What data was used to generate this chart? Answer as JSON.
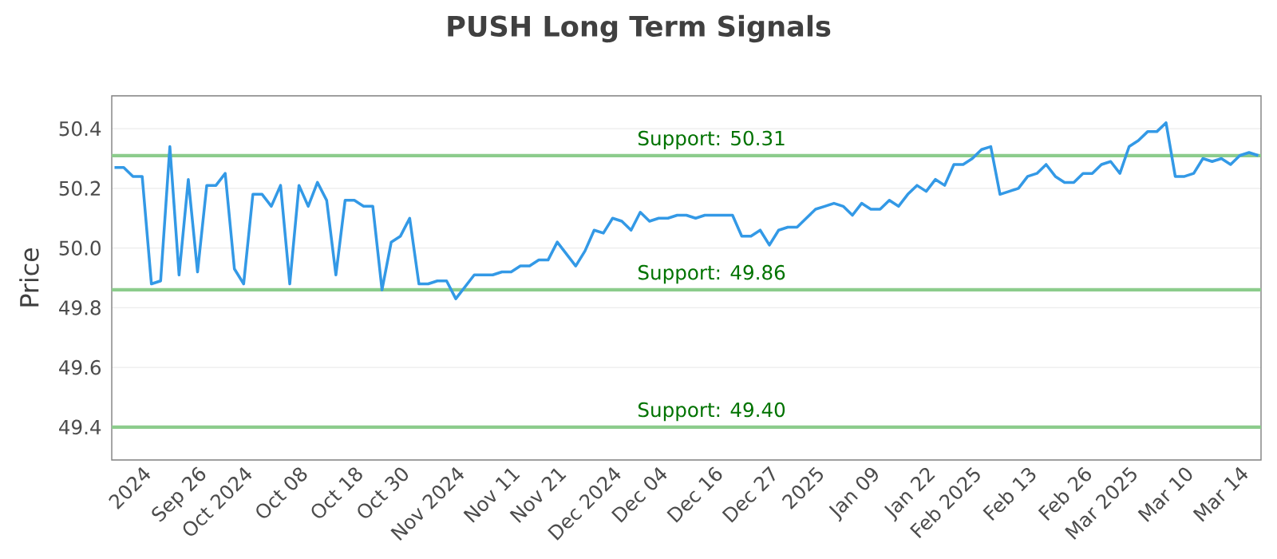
{
  "chart_data": {
    "type": "line",
    "title": "PUSH Long Term Signals",
    "ylabel": "Price",
    "categories": [
      null,
      null,
      null,
      "2024",
      null,
      null,
      null,
      null,
      null,
      "Sep 26",
      null,
      null,
      null,
      null,
      "Oct 2024",
      null,
      null,
      null,
      null,
      null,
      "Oct 08",
      null,
      null,
      null,
      null,
      null,
      "Oct 18",
      null,
      null,
      null,
      null,
      "Oct 30",
      null,
      null,
      null,
      null,
      null,
      "Nov 2024",
      null,
      null,
      null,
      null,
      null,
      "Nov 11",
      null,
      null,
      null,
      null,
      "Nov 21",
      null,
      null,
      null,
      null,
      null,
      "Dec 2024",
      null,
      null,
      null,
      null,
      "Dec 04",
      null,
      null,
      null,
      null,
      null,
      "Dec 16",
      null,
      null,
      null,
      null,
      null,
      "Dec 27",
      null,
      null,
      null,
      null,
      "2025",
      null,
      null,
      null,
      null,
      null,
      "Jan 09",
      null,
      null,
      null,
      null,
      null,
      "Jan 22",
      null,
      null,
      null,
      null,
      "Feb 2025",
      null,
      null,
      null,
      null,
      null,
      "Feb 13",
      null,
      null,
      null,
      null,
      null,
      "Feb 26",
      null,
      null,
      null,
      null,
      "Mar 2025",
      null,
      null,
      null,
      null,
      null,
      "Mar 10",
      null,
      null,
      null,
      null,
      null,
      "Mar 14",
      null,
      null
    ],
    "series": [
      {
        "color": "#3399e6",
        "values": [
          50.27,
          50.27,
          50.24,
          50.24,
          49.88,
          49.89,
          50.34,
          49.91,
          50.23,
          49.92,
          50.21,
          50.21,
          50.25,
          49.93,
          49.88,
          50.18,
          50.18,
          50.14,
          50.21,
          49.88,
          50.21,
          50.14,
          50.22,
          50.16,
          49.91,
          50.16,
          50.16,
          50.14,
          50.14,
          49.86,
          50.02,
          50.04,
          50.1,
          49.88,
          49.88,
          49.89,
          49.89,
          49.83,
          49.87,
          49.91,
          49.91,
          49.91,
          49.92,
          49.92,
          49.94,
          49.94,
          49.96,
          49.96,
          50.02,
          49.98,
          49.94,
          49.99,
          50.06,
          50.05,
          50.1,
          50.09,
          50.06,
          50.12,
          50.09,
          50.1,
          50.1,
          50.11,
          50.11,
          50.1,
          50.11,
          50.11,
          50.11,
          50.11,
          50.04,
          50.04,
          50.06,
          50.01,
          50.06,
          50.07,
          50.07,
          50.1,
          50.13,
          50.14,
          50.15,
          50.14,
          50.11,
          50.15,
          50.13,
          50.13,
          50.16,
          50.14,
          50.18,
          50.21,
          50.19,
          50.23,
          50.21,
          50.28,
          50.28,
          50.3,
          50.33,
          50.34,
          50.18,
          50.19,
          50.2,
          50.24,
          50.25,
          50.28,
          50.24,
          50.22,
          50.22,
          50.25,
          50.25,
          50.28,
          50.29,
          50.25,
          50.34,
          50.36,
          50.39,
          50.39,
          50.42,
          50.24,
          50.24,
          50.25,
          50.3,
          50.29,
          50.3,
          50.28,
          50.31,
          50.32,
          50.31
        ]
      }
    ],
    "ylim": [
      49.29,
      50.51
    ],
    "yticks": [
      49.4,
      49.6,
      49.8,
      {
        "value": 50,
        "label": "50.0"
      },
      50.2,
      50.4
    ],
    "grid": "y",
    "ref_lines": [
      {
        "axis": "y",
        "value": 50.31,
        "label": "Support: 50.31",
        "color": "#8ccc8c"
      },
      {
        "axis": "y",
        "value": 49.86,
        "label": "Support: 49.86",
        "color": "#8ccc8c"
      },
      {
        "axis": "y",
        "value": 49.4,
        "label": "Support: 49.40",
        "color": "#8ccc8c"
      }
    ]
  }
}
